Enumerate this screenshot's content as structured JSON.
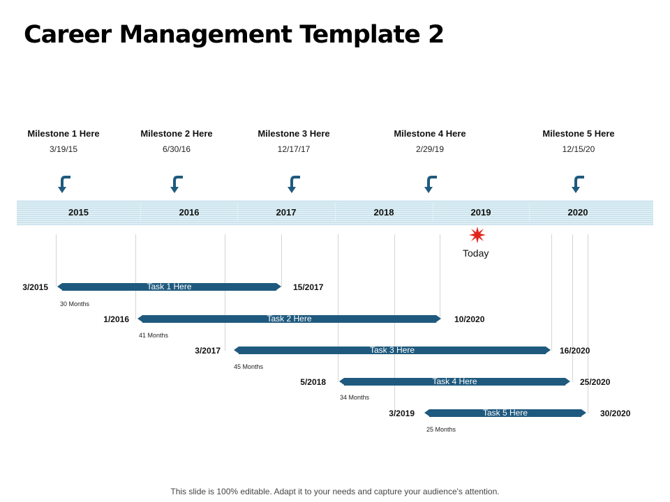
{
  "title": "Career Management Template 2",
  "milestones": [
    {
      "label": "Milestone 1 Here",
      "date": "3/19/15"
    },
    {
      "label": "Milestone 2 Here",
      "date": "6/30/16"
    },
    {
      "label": "Milestone 3 Here",
      "date": "12/17/17"
    },
    {
      "label": "Milestone 4 Here",
      "date": "2/29/19"
    },
    {
      "label": "Milestone 5 Here",
      "date": "12/15/20"
    }
  ],
  "years": [
    "2015",
    "2016",
    "2017",
    "2018",
    "2019",
    "2020"
  ],
  "today_label": "Today",
  "tasks": [
    {
      "label": "Task 1 Here",
      "start": "3/2015",
      "end": "15/2017",
      "duration": "30 Months"
    },
    {
      "label": "Task 2 Here",
      "start": "1/2016",
      "end": "10/2020",
      "duration": "41 Months"
    },
    {
      "label": "Task 3 Here",
      "start": "3/2017",
      "end": "16/2020",
      "duration": "45 Months"
    },
    {
      "label": "Task 4 Here",
      "start": "5/2018",
      "end": "25/2020",
      "duration": "34 Months"
    },
    {
      "label": "Task 5 Here",
      "start": "3/2019",
      "end": "30/2020",
      "duration": "25 Months"
    }
  ],
  "footer": "This slide is 100% editable. Adapt it to your needs and capture your audience's attention.",
  "colors": {
    "bar": "#1f5a7e",
    "arrow": "#1f5a7e",
    "star": "#e3241b",
    "band": "#dfeff5"
  },
  "icons": {
    "milestone_marker": "curved-arrow-down-icon",
    "today_marker": "star-burst-icon"
  }
}
